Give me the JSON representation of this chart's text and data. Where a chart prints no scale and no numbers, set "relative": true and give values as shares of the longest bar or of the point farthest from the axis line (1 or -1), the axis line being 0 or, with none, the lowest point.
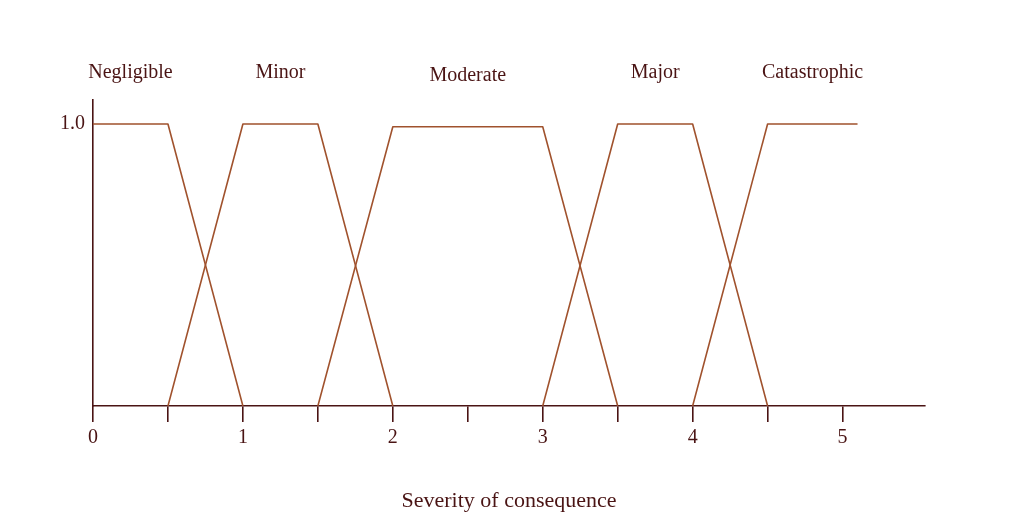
{
  "chart_data": {
    "type": "line",
    "xlabel": "Severity of consequence",
    "xlim": [
      0,
      5.55
    ],
    "xticks": [
      0,
      {
        "value": 0.5,
        "label": null
      },
      1,
      {
        "value": 1.5,
        "label": null
      },
      2,
      {
        "value": 2.5,
        "label": null
      },
      3,
      {
        "value": 3.5,
        "label": null
      },
      4,
      {
        "value": 4.5,
        "label": null
      },
      5
    ],
    "relative": true,
    "annotations": [
      "1.0"
    ],
    "grid": false,
    "legend": false,
    "marker": "none",
    "line_style": "solid",
    "series": [
      {
        "name": "Negligible",
        "color": "#a0522d",
        "x": [
          0,
          0.5,
          1
        ],
        "values": [
          1,
          1,
          0
        ]
      },
      {
        "name": "Minor",
        "color": "#a0522d",
        "x": [
          0.5,
          1,
          1.5,
          2
        ],
        "values": [
          0,
          1,
          1,
          0
        ]
      },
      {
        "name": "Moderate",
        "color": "#a0522d",
        "x": [
          1.5,
          2,
          3,
          3.5
        ],
        "values": [
          0,
          0.99,
          0.99,
          0
        ]
      },
      {
        "name": "Major",
        "color": "#a0522d",
        "x": [
          3,
          3.5,
          4,
          4.5
        ],
        "values": [
          0,
          1,
          1,
          0
        ]
      },
      {
        "name": "Catastrophic",
        "color": "#a0522d",
        "x": [
          4,
          4.5,
          5.1
        ],
        "values": [
          0,
          1,
          1
        ]
      }
    ]
  }
}
